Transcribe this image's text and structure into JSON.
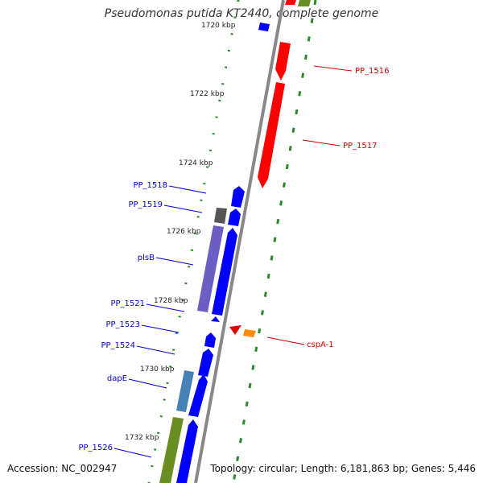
{
  "title": "Pseudomonas putida KT2440, complete genome",
  "footer": {
    "accession": "Accession: NC_002947",
    "summary": "Topology: circular; Length: 6,181,863 bp; Genes: 5,446"
  },
  "colors": {
    "backbone": "#888888",
    "tick": "#2a8a2a",
    "forward_label": "#0000cc",
    "reverse_label": "#cc0000",
    "blue_gene": "#0000ff",
    "red_gene": "#ff0000",
    "purple_gene": "#6b5fc4",
    "gray_gene": "#555555",
    "steel_gene": "#4682b4",
    "olive_gene": "#6b8e23",
    "orange_gene": "#ff8c00"
  },
  "scale_labels": [
    "1720 kbp",
    "1722 kbp",
    "1724 kbp",
    "1726 kbp",
    "1728 kbp",
    "1730 kbp",
    "1732 kbp"
  ],
  "gene_labels_left": [
    "PP_1518",
    "PP_1519",
    "plsB",
    "PP_1521",
    "PP_1523",
    "PP_1524",
    "dapE",
    "PP_1526"
  ],
  "gene_labels_right": [
    "PP_1516",
    "PP_1517",
    "cspA-1"
  ]
}
